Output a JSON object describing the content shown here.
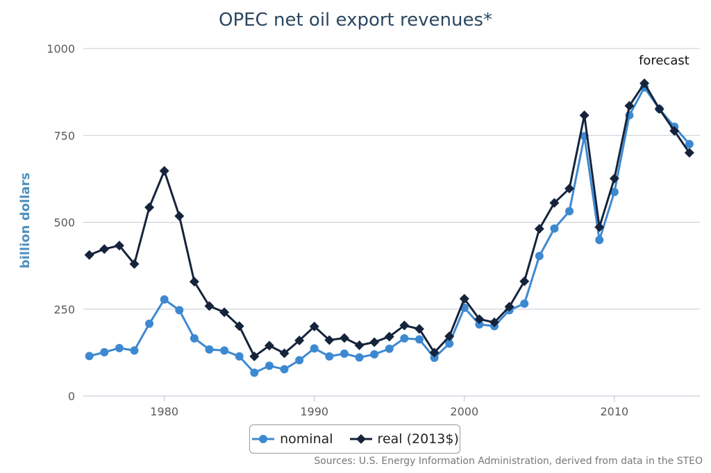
{
  "chart_data": {
    "type": "line",
    "title": "OPEC net oil export revenues*",
    "ylabel": "billion dollars",
    "xlabel": "",
    "ylim": [
      0,
      1000
    ],
    "xlim": [
      1975,
      2015
    ],
    "y_ticks": [
      0,
      250,
      500,
      750,
      1000
    ],
    "x_ticks": [
      1980,
      1990,
      2000,
      2010
    ],
    "grid": "horizontal",
    "legend_position": "bottom-center",
    "annotation": "forecast",
    "source": "Sources: U.S. Energy Information Administration, derived from data in the STEO",
    "x": [
      1975,
      1976,
      1977,
      1978,
      1979,
      1980,
      1981,
      1982,
      1983,
      1984,
      1985,
      1986,
      1987,
      1988,
      1989,
      1990,
      1991,
      1992,
      1993,
      1994,
      1995,
      1996,
      1997,
      1998,
      1999,
      2000,
      2001,
      2002,
      2003,
      2004,
      2005,
      2006,
      2007,
      2008,
      2009,
      2010,
      2011,
      2012,
      2013,
      2014,
      2015
    ],
    "series": [
      {
        "name": "nominal",
        "color": "#3d89d1",
        "marker": "circle",
        "values": [
          115,
          126,
          138,
          131,
          208,
          278,
          247,
          166,
          134,
          131,
          114,
          67,
          87,
          77,
          103,
          137,
          114,
          122,
          111,
          120,
          136,
          166,
          163,
          110,
          151,
          254,
          206,
          201,
          247,
          266,
          403,
          482,
          532,
          748,
          449,
          587,
          808,
          888,
          826,
          775,
          725
        ]
      },
      {
        "name": "real (2013$)",
        "color": "#15233b",
        "marker": "diamond",
        "values": [
          406,
          423,
          433,
          380,
          543,
          648,
          518,
          329,
          259,
          241,
          201,
          114,
          145,
          123,
          160,
          200,
          161,
          167,
          146,
          155,
          171,
          203,
          193,
          125,
          172,
          280,
          221,
          212,
          257,
          330,
          481,
          556,
          597,
          808,
          486,
          626,
          835,
          900,
          826,
          763,
          700
        ]
      }
    ]
  }
}
